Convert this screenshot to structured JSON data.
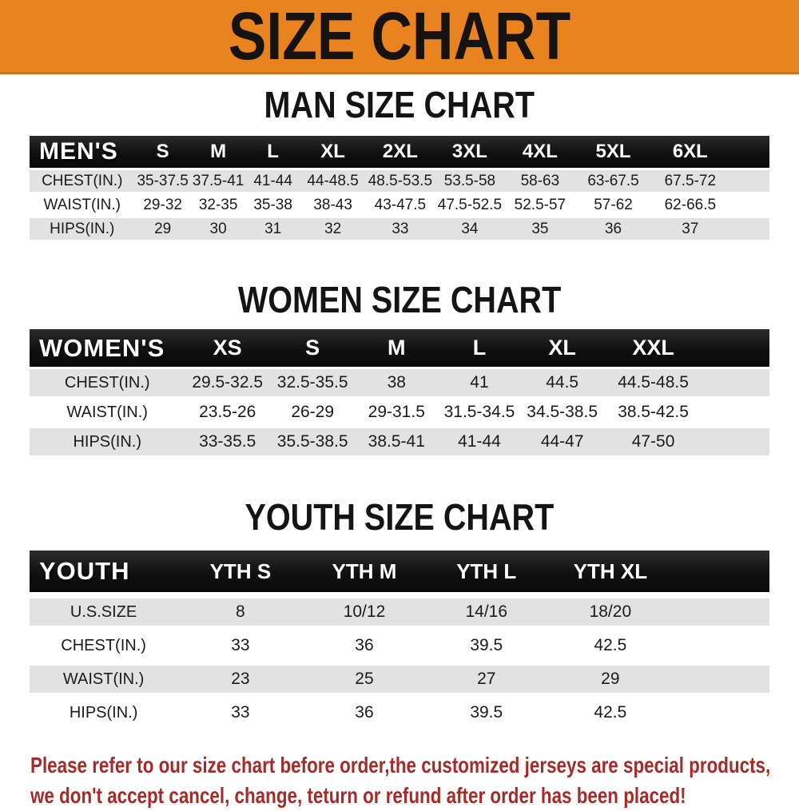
{
  "banner": {
    "title": "SIZE CHART"
  },
  "colors": {
    "banner_bg": "#E9831F",
    "header_bar_black": "#141414",
    "row_gray": "#E2E2E2",
    "footer_red": "#A42B28"
  },
  "sections": [
    {
      "heading": "MAN SIZE CHART",
      "label": "MEN'S",
      "columns": [
        "S",
        "M",
        "L",
        "XL",
        "2XL",
        "3XL",
        "4XL",
        "5XL",
        "6XL"
      ],
      "rows": [
        {
          "label": "CHEST(IN.)",
          "values": [
            "35-37.5",
            "37.5-41",
            "41-44",
            "44-48.5",
            "48.5-53.5",
            "53.5-58",
            "58-63",
            "63-67.5",
            "67.5-72"
          ]
        },
        {
          "label": "WAIST(IN.)",
          "values": [
            "29-32",
            "32-35",
            "35-38",
            "38-43",
            "43-47.5",
            "47.5-52.5",
            "52.5-57",
            "57-62",
            "62-66.5"
          ]
        },
        {
          "label": "HIPS(IN.)",
          "values": [
            "29",
            "30",
            "31",
            "32",
            "33",
            "34",
            "35",
            "36",
            "37"
          ]
        }
      ]
    },
    {
      "heading": "WOMEN SIZE CHART",
      "label": "WOMEN'S",
      "columns": [
        "XS",
        "S",
        "M",
        "L",
        "XL",
        "XXL"
      ],
      "rows": [
        {
          "label": "CHEST(IN.)",
          "values": [
            "29.5-32.5",
            "32.5-35.5",
            "38",
            "41",
            "44.5",
            "44.5-48.5"
          ]
        },
        {
          "label": "WAIST(IN.)",
          "values": [
            "23.5-26",
            "26-29",
            "29-31.5",
            "31.5-34.5",
            "34.5-38.5",
            "38.5-42.5"
          ]
        },
        {
          "label": "HIPS(IN.)",
          "values": [
            "33-35.5",
            "35.5-38.5",
            "38.5-41",
            "41-44",
            "44-47",
            "47-50"
          ]
        }
      ]
    },
    {
      "heading": "YOUTH SIZE CHART",
      "label": "YOUTH",
      "columns": [
        "YTH S",
        "YTH M",
        "YTH L",
        "YTH XL"
      ],
      "rows": [
        {
          "label": "U.S.SIZE",
          "values": [
            "8",
            "10/12",
            "14/16",
            "18/20"
          ]
        },
        {
          "label": "CHEST(IN.)",
          "values": [
            "33",
            "36",
            "39.5",
            "42.5"
          ]
        },
        {
          "label": "WAIST(IN.)",
          "values": [
            "23",
            "25",
            "27",
            "29"
          ]
        },
        {
          "label": "HIPS(IN.)",
          "values": [
            "33",
            "36",
            "39.5",
            "42.5"
          ]
        }
      ]
    }
  ],
  "footer": {
    "line1": "Please refer to our size chart before order,the customized jerseys are special products,",
    "line2": "we don't accept cancel, change, teturn or refund after order has been placed!"
  }
}
